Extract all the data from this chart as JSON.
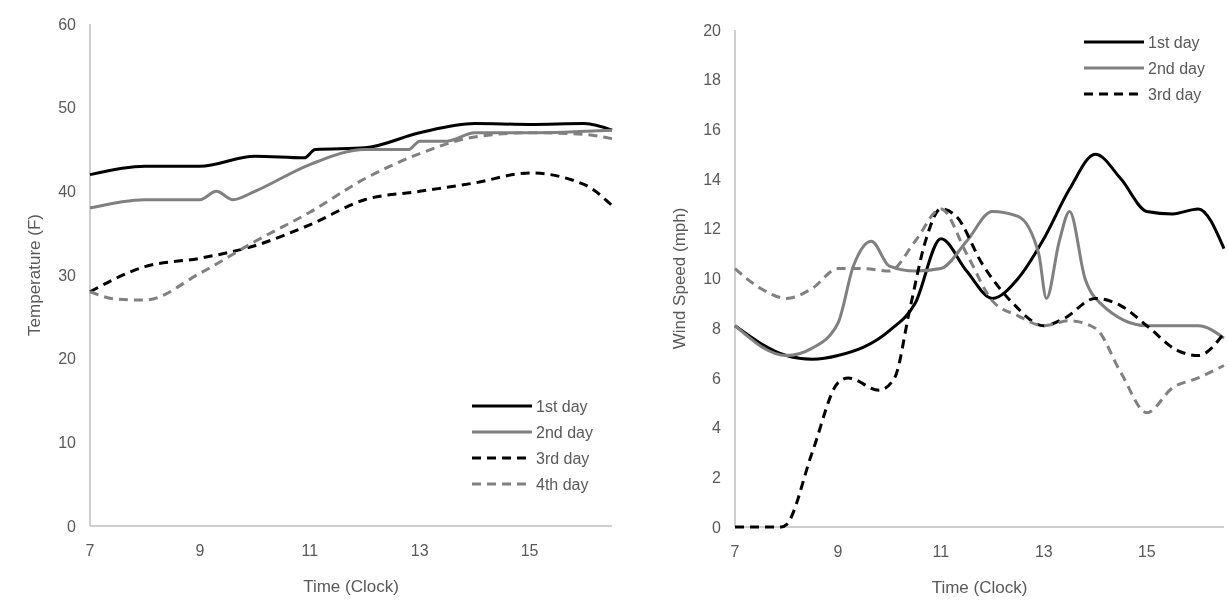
{
  "chart_data": [
    {
      "type": "line",
      "xlabel": "Time (Clock)",
      "ylabel": "Temperature (F)",
      "xlim": [
        7,
        16.5
      ],
      "xticks": [
        7,
        9,
        11,
        13,
        15
      ],
      "ylim": [
        0,
        60
      ],
      "yticks": [
        0,
        10,
        20,
        30,
        40,
        50,
        60
      ],
      "grid": false,
      "legend": "bottom right",
      "marker": "none",
      "series": [
        {
          "name": "1st day",
          "color": "#000000",
          "line_style": "solid",
          "x": [
            7,
            8,
            9,
            10,
            10.9,
            11.1,
            12,
            13,
            14,
            15,
            16,
            16.5
          ],
          "values": [
            42,
            43,
            43,
            44.2,
            44,
            45,
            45.2,
            47,
            48.1,
            48,
            48.1,
            47.3
          ]
        },
        {
          "name": "2nd day",
          "color": "#808080",
          "line_style": "solid",
          "x": [
            7,
            8,
            9,
            9.3,
            9.6,
            10,
            11,
            12,
            12.8,
            13,
            13.5,
            14,
            15,
            16.5
          ],
          "values": [
            38,
            39,
            39,
            40,
            39,
            40,
            43.2,
            45,
            45,
            46,
            46,
            47,
            47,
            47.3
          ]
        },
        {
          "name": "3rd day",
          "color": "#000000",
          "line_style": "dashed",
          "x": [
            7,
            8,
            9,
            10,
            11,
            12,
            13,
            14,
            15,
            16,
            16.5
          ],
          "values": [
            28,
            31,
            32,
            33.5,
            36,
            39,
            40,
            41,
            42.2,
            40.8,
            38.3
          ]
        },
        {
          "name": "4th day",
          "color": "#808080",
          "line_style": "dashed",
          "x": [
            7,
            7.5,
            8,
            9,
            10,
            11,
            12,
            13,
            14,
            15,
            16,
            16.5
          ],
          "values": [
            28,
            27.1,
            27,
            30.2,
            34,
            37.5,
            41.5,
            44.5,
            46.5,
            47,
            46.8,
            46.3
          ]
        }
      ]
    },
    {
      "type": "line",
      "xlabel": "Time (Clock)",
      "ylabel": "Wind Speed (mph)",
      "xlim": [
        7,
        16.5
      ],
      "xticks": [
        7,
        9,
        11,
        13,
        15
      ],
      "ylim": [
        0,
        20
      ],
      "yticks": [
        0,
        2,
        4,
        6,
        8,
        10,
        12,
        14,
        16,
        18,
        20
      ],
      "grid": false,
      "legend": "top right",
      "marker": "none",
      "series": [
        {
          "name": "1st day",
          "color": "#000000",
          "line_style": "solid",
          "x": [
            7,
            8,
            8.5,
            9,
            10,
            10.5,
            11,
            11.5,
            12,
            12.5,
            13,
            13.5,
            14,
            14.5,
            15,
            15.5,
            16,
            16.5
          ],
          "values": [
            8.1,
            6.9,
            6.75,
            6.9,
            7.9,
            9,
            11.6,
            10.3,
            9.2,
            10,
            11.6,
            13.6,
            15,
            14,
            12.7,
            12.6,
            12.8,
            11.2
          ]
        },
        {
          "name": "2nd day",
          "color": "#808080",
          "line_style": "solid",
          "x": [
            7,
            8,
            8.5,
            9,
            9.3,
            9.65,
            10,
            10.5,
            11,
            11.5,
            12,
            12.5,
            12.9,
            13.05,
            13.3,
            13.5,
            13.8,
            14.1,
            15,
            16,
            16.5
          ],
          "values": [
            8.1,
            6.9,
            7.2,
            8.2,
            10.5,
            11.5,
            10.5,
            10.3,
            10.4,
            11.5,
            12.7,
            12.5,
            11,
            9.2,
            11.5,
            12.7,
            10,
            9,
            8.1,
            8.1,
            7.6
          ]
        },
        {
          "name": "3rd day",
          "color": "#000000",
          "line_style": "dashed",
          "x": [
            7,
            7.2,
            7.9,
            8,
            8.5,
            9,
            9.2,
            9.8,
            10.1,
            10.4,
            10.7,
            11,
            11.3,
            11.8,
            12.4,
            13,
            13.4,
            14,
            14.5,
            15,
            15.6,
            16,
            16.5
          ],
          "values": [
            0,
            0,
            0,
            0.1,
            3,
            5.8,
            6,
            5.5,
            6,
            8.8,
            11.5,
            12.8,
            12.5,
            10.6,
            9,
            8.1,
            8.4,
            9.2,
            8.9,
            8.1,
            7.1,
            6.9,
            7.8
          ]
        },
        {
          "color": "#808080",
          "line_style": "dashed",
          "x": [
            7,
            7.5,
            8,
            8.5,
            9,
            9.5,
            10,
            10.5,
            11,
            11.5,
            12,
            12.5,
            13,
            13.5,
            14,
            14.5,
            15,
            15.5,
            16,
            16.5
          ],
          "values": [
            10.4,
            9.6,
            9.2,
            9.6,
            10.4,
            10.4,
            10.3,
            11.5,
            12.8,
            11,
            9.1,
            8.5,
            8.1,
            8.3,
            8,
            6.2,
            4.6,
            5.6,
            6,
            6.5
          ]
        }
      ]
    }
  ]
}
